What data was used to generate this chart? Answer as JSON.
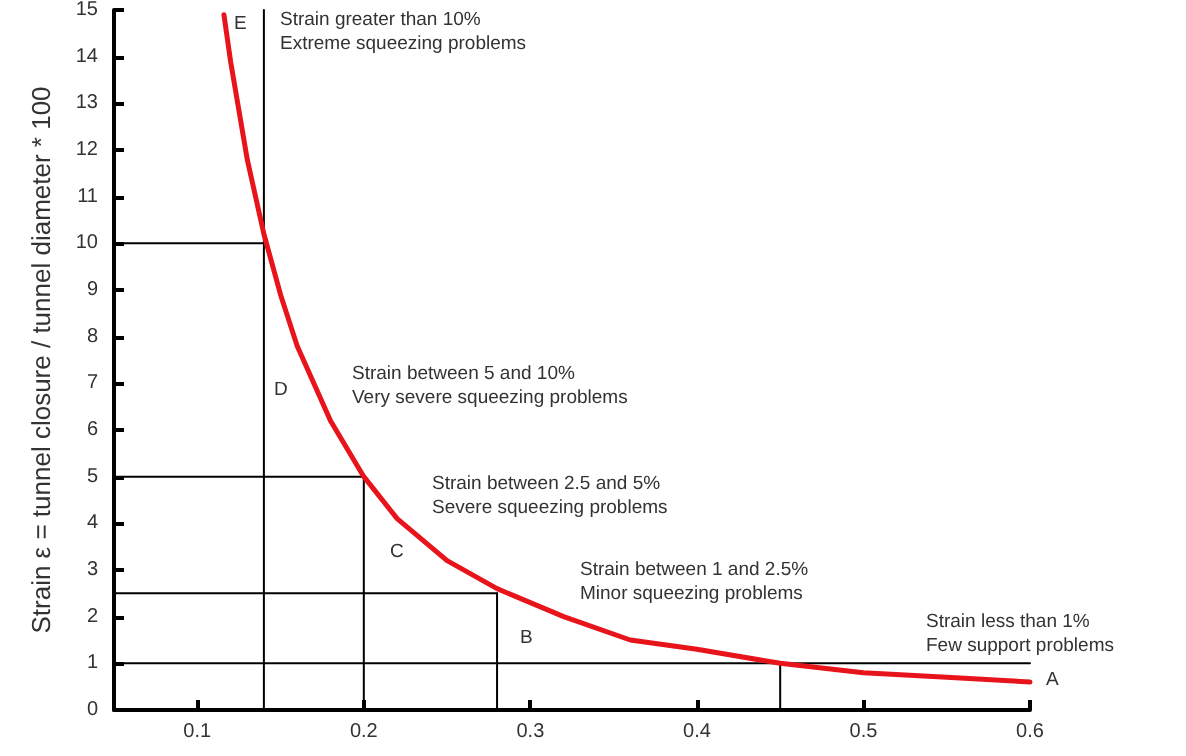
{
  "chart_data": {
    "type": "line",
    "ylabel": "Strain ε = tunnel closure / tunnel diameter * 100",
    "xlim": [
      0.05,
      0.6
    ],
    "xticks": [
      0.1,
      0.2,
      0.3,
      0.4,
      0.5,
      0.6
    ],
    "ylim": [
      0,
      15
    ],
    "yticks": [
      0,
      1,
      2,
      3,
      4,
      5,
      6,
      7,
      8,
      9,
      10,
      11,
      12,
      13,
      14,
      15
    ],
    "grid": false,
    "marker": "none",
    "line_style": "solid",
    "series": [
      {
        "color": "#e8141b",
        "x": [
          0.116,
          0.12,
          0.13,
          0.14,
          0.15,
          0.16,
          0.18,
          0.2,
          0.22,
          0.25,
          0.28,
          0.32,
          0.36,
          0.4,
          0.45,
          0.5,
          0.55,
          0.6
        ],
        "values": [
          14.9,
          13.9,
          11.8,
          10.2,
          8.9,
          7.8,
          6.2,
          5.0,
          4.1,
          3.2,
          2.6,
          2.0,
          1.5,
          1.3,
          1.0,
          0.8,
          0.7,
          0.6
        ]
      },
      {
        "color": "#000000",
        "x": [
          0.05,
          0.14
        ],
        "values": [
          10,
          10
        ]
      },
      {
        "color": "#000000",
        "x": [
          0.05,
          0.2
        ],
        "values": [
          5,
          5
        ]
      },
      {
        "color": "#000000",
        "x": [
          0.05,
          0.28
        ],
        "values": [
          2.5,
          2.5
        ]
      },
      {
        "color": "#000000",
        "x": [
          0.05,
          0.6
        ],
        "values": [
          1,
          1
        ]
      },
      {
        "color": "#000000",
        "x": [
          0.14,
          0.14
        ],
        "values": [
          0,
          15
        ]
      },
      {
        "color": "#000000",
        "x": [
          0.2,
          0.2
        ],
        "values": [
          0,
          5
        ]
      },
      {
        "color": "#000000",
        "x": [
          0.28,
          0.28
        ],
        "values": [
          0,
          2.5
        ]
      },
      {
        "color": "#000000",
        "x": [
          0.45,
          0.45
        ],
        "values": [
          0,
          1
        ]
      }
    ],
    "annotations": [
      "E",
      "Strain greater than 10%\nExtreme squeezing problems",
      "D",
      "Strain between 5 and 10%\nVery severe squeezing problems",
      "C",
      "Strain between 2.5 and 5%\nSevere squeezing problems",
      "B",
      "Strain between 1 and 2.5%\nMinor squeezing problems",
      "A",
      "Strain less than 1%\nFew support problems"
    ]
  }
}
